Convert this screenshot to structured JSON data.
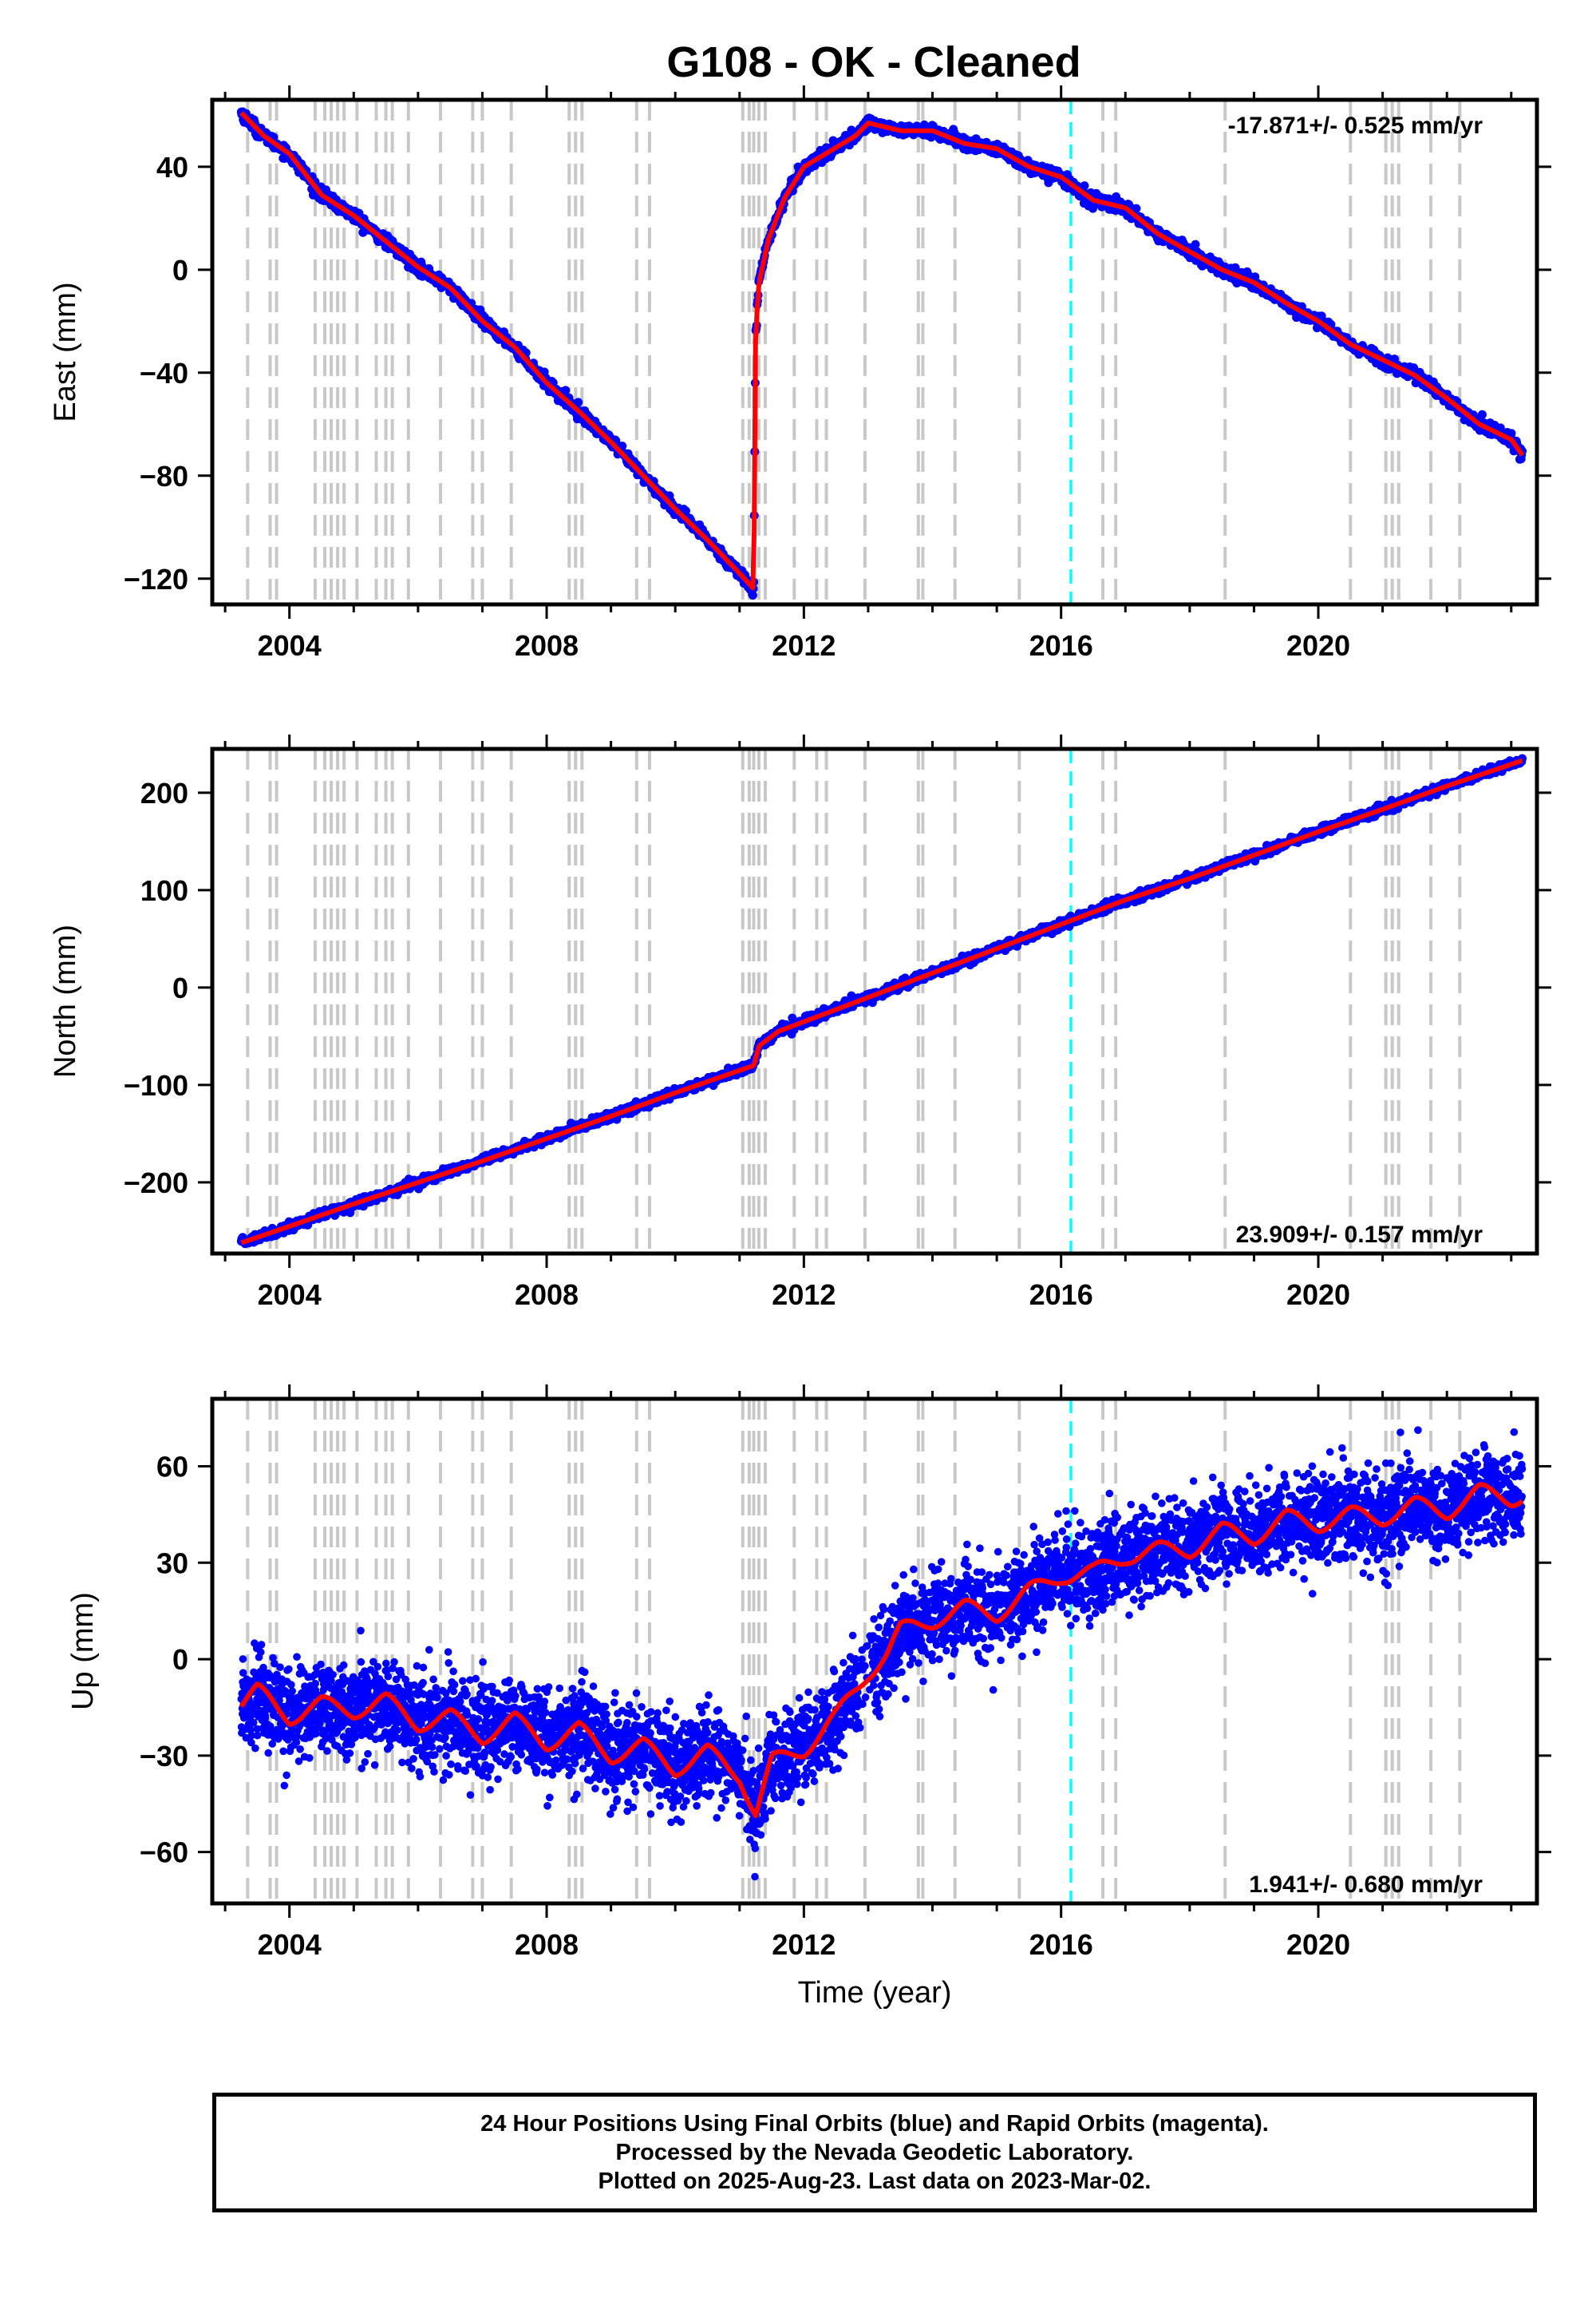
{
  "colors": {
    "points": "#0000ff",
    "model": "#ff0000",
    "events": "#c8c8c8",
    "event_highlight": "#00ffff",
    "frame": "#000000"
  },
  "chart_data": [
    {
      "type": "scatter",
      "title": "G108  - OK - Cleaned",
      "xlabel": "",
      "ylabel": "East (mm)",
      "xlim": [
        2002.8,
        2023.4
      ],
      "ylim": [
        -130,
        66
      ],
      "x_ticks": [
        2004,
        2008,
        2012,
        2016,
        2020
      ],
      "y_ticks": [
        40,
        0,
        -40,
        -80,
        -120
      ],
      "rate_label": "-17.871+/- 0.525 mm/yr",
      "grid": false,
      "series": [
        {
          "values_xy": [
            [
              2003.25,
              61
            ],
            [
              2003.6,
              52
            ],
            [
              2004.0,
              45
            ],
            [
              2004.5,
              29
            ],
            [
              2005.0,
              21
            ],
            [
              2005.5,
              11
            ],
            [
              2006.0,
              1
            ],
            [
              2006.5,
              -7
            ],
            [
              2007.0,
              -20
            ],
            [
              2007.5,
              -30
            ],
            [
              2008.0,
              -44
            ],
            [
              2008.5,
              -55
            ],
            [
              2009.0,
              -67
            ],
            [
              2009.5,
              -80
            ],
            [
              2010.0,
              -93
            ],
            [
              2010.5,
              -105
            ],
            [
              2011.0,
              -118
            ],
            [
              2011.22,
              -124
            ],
            [
              2011.25,
              -25
            ],
            [
              2011.3,
              -5
            ],
            [
              2011.45,
              12
            ],
            [
              2011.7,
              28
            ],
            [
              2012.0,
              40
            ],
            [
              2012.4,
              46
            ],
            [
              2012.8,
              52
            ],
            [
              2013.0,
              57
            ],
            [
              2013.5,
              54
            ],
            [
              2014.0,
              54
            ],
            [
              2014.5,
              49
            ],
            [
              2015.0,
              47
            ],
            [
              2015.5,
              40
            ],
            [
              2016.0,
              36
            ],
            [
              2016.5,
              27
            ],
            [
              2017.0,
              24
            ],
            [
              2017.5,
              14
            ],
            [
              2018.0,
              7
            ],
            [
              2018.5,
              0
            ],
            [
              2019.0,
              -5
            ],
            [
              2019.5,
              -13
            ],
            [
              2020.0,
              -20
            ],
            [
              2020.5,
              -29
            ],
            [
              2021.0,
              -35
            ],
            [
              2021.5,
              -41
            ],
            [
              2022.0,
              -50
            ],
            [
              2022.5,
              -60
            ],
            [
              2023.0,
              -66
            ],
            [
              2023.17,
              -72
            ]
          ]
        }
      ]
    },
    {
      "type": "scatter",
      "xlabel": "",
      "ylabel": "North (mm)",
      "xlim": [
        2002.8,
        2023.4
      ],
      "ylim": [
        -273,
        245
      ],
      "x_ticks": [
        2004,
        2008,
        2012,
        2016,
        2020
      ],
      "y_ticks": [
        200,
        100,
        0,
        -100,
        -200
      ],
      "rate_label": "23.909+/- 0.157 mm/yr",
      "grid": false,
      "series": [
        {
          "values_xy": [
            [
              2003.25,
              -262
            ],
            [
              2004.0,
              -245
            ],
            [
              2005.0,
              -222
            ],
            [
              2006.0,
              -200
            ],
            [
              2007.0,
              -178
            ],
            [
              2008.0,
              -155
            ],
            [
              2009.0,
              -132
            ],
            [
              2010.0,
              -108
            ],
            [
              2011.0,
              -85
            ],
            [
              2011.22,
              -80
            ],
            [
              2011.3,
              -60
            ],
            [
              2011.6,
              -45
            ],
            [
              2012.0,
              -35
            ],
            [
              2013.0,
              -10
            ],
            [
              2014.0,
              15
            ],
            [
              2015.0,
              40
            ],
            [
              2016.0,
              65
            ],
            [
              2017.0,
              90
            ],
            [
              2018.0,
              112
            ],
            [
              2019.0,
              136
            ],
            [
              2020.0,
              160
            ],
            [
              2021.0,
              183
            ],
            [
              2022.0,
              207
            ],
            [
              2023.17,
              233
            ]
          ]
        }
      ]
    },
    {
      "type": "scatter",
      "xlabel": "Time (year)",
      "ylabel": "Up (mm)",
      "xlim": [
        2002.8,
        2023.4
      ],
      "ylim": [
        -76,
        81
      ],
      "x_ticks": [
        2004,
        2008,
        2012,
        2016,
        2020
      ],
      "y_ticks": [
        60,
        30,
        0,
        -30,
        -60
      ],
      "rate_label": "1.941+/- 0.680 mm/yr",
      "grid": false,
      "series": [
        {
          "values_xy": [
            [
              2003.25,
              -14
            ],
            [
              2003.5,
              -10
            ],
            [
              2004.0,
              -18
            ],
            [
              2004.5,
              -14
            ],
            [
              2005.0,
              -16
            ],
            [
              2005.5,
              -13
            ],
            [
              2006.0,
              -20
            ],
            [
              2006.5,
              -18
            ],
            [
              2007.0,
              -24
            ],
            [
              2007.5,
              -19
            ],
            [
              2008.0,
              -26
            ],
            [
              2008.5,
              -22
            ],
            [
              2009.0,
              -30
            ],
            [
              2009.5,
              -27
            ],
            [
              2010.0,
              -34
            ],
            [
              2010.5,
              -29
            ],
            [
              2011.0,
              -36
            ],
            [
              2011.25,
              -48
            ],
            [
              2011.5,
              -32
            ],
            [
              2012.0,
              -28
            ],
            [
              2012.5,
              -18
            ],
            [
              2013.0,
              -4
            ],
            [
              2013.3,
              2
            ],
            [
              2013.5,
              9
            ],
            [
              2014.0,
              12
            ],
            [
              2014.5,
              16
            ],
            [
              2015.0,
              14
            ],
            [
              2015.5,
              21
            ],
            [
              2016.0,
              26
            ],
            [
              2016.5,
              27
            ],
            [
              2017.0,
              32
            ],
            [
              2017.5,
              34
            ],
            [
              2018.0,
              34
            ],
            [
              2018.5,
              40
            ],
            [
              2019.0,
              38
            ],
            [
              2019.5,
              44
            ],
            [
              2020.0,
              42
            ],
            [
              2020.5,
              45
            ],
            [
              2021.0,
              44
            ],
            [
              2021.5,
              48
            ],
            [
              2022.0,
              46
            ],
            [
              2022.5,
              52
            ],
            [
              2023.0,
              50
            ],
            [
              2023.17,
              51
            ]
          ]
        }
      ]
    }
  ],
  "events": {
    "gray": [
      2003.35,
      2003.7,
      2003.8,
      2004.4,
      2004.55,
      2004.65,
      2004.75,
      2004.85,
      2005.05,
      2005.35,
      2005.5,
      2005.6,
      2005.85,
      2006.35,
      2006.85,
      2007.0,
      2007.45,
      2008.35,
      2008.45,
      2008.55,
      2009.4,
      2009.6,
      2011.05,
      2011.15,
      2011.22,
      2011.3,
      2011.4,
      2011.85,
      2012.2,
      2012.35,
      2012.95,
      2013.78,
      2013.85,
      2014.35,
      2015.35,
      2016.65,
      2016.85,
      2018.55,
      2020.5,
      2021.05,
      2021.15,
      2021.25,
      2021.75,
      2022.2
    ],
    "cyan": [
      2016.15
    ]
  },
  "footer": {
    "line1": "24 Hour Positions Using Final Orbits (blue) and Rapid Orbits (magenta).",
    "line2": "Processed by the Nevada Geodetic Laboratory.",
    "line3": "Plotted on 2025-Aug-23. Last data on 2023-Mar-02."
  }
}
